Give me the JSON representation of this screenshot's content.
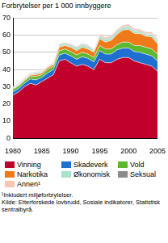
{
  "chart_data": {
    "type": "stacked_area",
    "y_label": "Forbrytelser per 1 000 innbyggere",
    "x": [
      1980,
      1981,
      1982,
      1983,
      1984,
      1985,
      1986,
      1987,
      1988,
      1989,
      1990,
      1991,
      1992,
      1993,
      1994,
      1995,
      1996,
      1997,
      1998,
      1999,
      2000,
      2001,
      2002,
      2003,
      2004,
      2005
    ],
    "series": [
      {
        "name": "Vinning",
        "color": "#c1002b",
        "values": [
          25,
          27,
          30,
          32,
          31,
          33,
          35,
          37,
          45,
          46,
          44,
          42,
          43,
          42,
          40,
          46,
          44,
          44,
          46,
          47,
          47,
          45,
          44,
          43,
          42,
          39
        ]
      },
      {
        "name": "Skadeverk",
        "color": "#1f6fd1",
        "values": [
          2,
          2,
          2,
          2.5,
          3,
          2.5,
          3,
          3,
          3.5,
          3.5,
          4,
          4,
          4.5,
          4.5,
          4.5,
          5,
          5,
          5,
          5.5,
          5.5,
          5.5,
          5.5,
          6,
          6,
          6,
          6
        ]
      },
      {
        "name": "Vold",
        "color": "#5cb82e",
        "values": [
          1.5,
          1.5,
          1.5,
          1.5,
          2,
          1.5,
          2,
          2,
          2.5,
          2.5,
          2.5,
          2.5,
          2.5,
          2.5,
          2.5,
          3,
          3,
          3,
          3,
          3.5,
          3.5,
          3.5,
          4,
          4,
          4,
          4
        ]
      },
      {
        "name": "Narkotika",
        "color": "#f07a1a",
        "values": [
          0.3,
          0.3,
          0.5,
          0.7,
          1,
          1,
          1,
          1,
          2,
          2,
          2.5,
          2.5,
          3,
          3,
          3,
          4,
          4,
          5,
          6,
          7,
          7.5,
          7,
          7,
          6.5,
          7,
          6
        ]
      },
      {
        "name": "Økonomisk",
        "color": "#a6e3c9",
        "values": [
          0.5,
          0.5,
          0.5,
          0.5,
          1,
          0.5,
          0.5,
          0.5,
          1,
          1,
          1,
          1.5,
          1.5,
          1.5,
          1,
          1.5,
          1.5,
          1.5,
          1.5,
          1.5,
          1.5,
          1.5,
          1,
          1,
          1.5,
          1.5
        ]
      },
      {
        "name": "Seksual",
        "color": "#8c8c8c",
        "values": [
          0.3,
          0.3,
          0.3,
          0.3,
          0.3,
          0.3,
          0.3,
          0.3,
          0.5,
          0.5,
          0.5,
          0.5,
          0.5,
          0.5,
          0.5,
          0.5,
          0.5,
          0.5,
          0.5,
          0.5,
          0.5,
          0.5,
          0.5,
          0.5,
          0.5,
          0.5
        ]
      },
      {
        "name": "Annen¹",
        "color": "#f7c5b0",
        "values": [
          0.5,
          0.5,
          0.5,
          0.5,
          0.5,
          0.5,
          0.5,
          0.5,
          0.5,
          0.5,
          0.5,
          0.5,
          0.5,
          0.5,
          0.5,
          1,
          1,
          1,
          1,
          1,
          1,
          1,
          1,
          1,
          1,
          1
        ]
      }
    ],
    "xlim": [
      1980,
      2005
    ],
    "xticks": [
      1980,
      1985,
      1990,
      1995,
      2000,
      2005
    ],
    "ylim": [
      0,
      70
    ],
    "yticks": [
      0,
      10,
      20,
      30,
      40,
      50,
      60,
      70
    ],
    "stacked": true,
    "grid": true,
    "legend": "bottom",
    "footnote": "¹Inkludert miljøforbrytelser.",
    "source": "Kilde: Etterforskede lovbrudd, Sosiale indikatorer, Statistisk sentralbyrå."
  }
}
